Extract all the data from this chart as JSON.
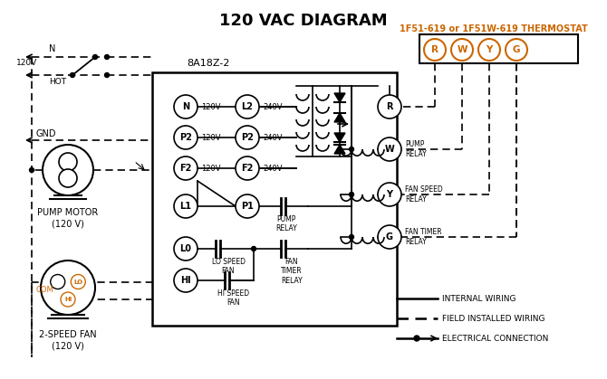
{
  "title": "120 VAC DIAGRAM",
  "bg_color": "#ffffff",
  "line_color": "#000000",
  "orange_color": "#cc6600",
  "thermostat_label": "1F51-619 or 1F51W-619 THERMOSTAT",
  "thermostat_terminals": [
    "R",
    "W",
    "Y",
    "G"
  ],
  "board_label": "8A18Z-2",
  "left_labels": [
    "N",
    "P2",
    "F2"
  ],
  "left_voltages": [
    "120V",
    "120V",
    "120V"
  ],
  "right_labels": [
    "L2",
    "P2",
    "F2"
  ],
  "right_voltages": [
    "240V",
    "240V",
    "240V"
  ],
  "right_relay_R": "R",
  "right_relay_W": "W",
  "right_relay_Y": "Y",
  "right_relay_G": "G",
  "pump_relay_label": "PUMP\nRELAY",
  "fan_speed_label": "FAN SPEED\nRELAY",
  "fan_timer_label": "FAN TIMER\nRELAY",
  "pump_motor_label": "PUMP MOTOR\n(120 V)",
  "two_speed_fan_label": "2-SPEED FAN\n(120 V)",
  "gnd_label": "GND",
  "n_label": "N",
  "hot_label": "HOT",
  "120v_label": "120V",
  "com_label": "COM",
  "lo_label": "LO",
  "hi_label": "HI",
  "lo_speed_text": "LO SPEED\nFAN",
  "hi_speed_text": "HI SPEED\nFAN",
  "pump_relay_text": "PUMP\nRELAY",
  "fan_timer_text": "FAN\nTIMER\nRELAY",
  "legend_internal": "INTERNAL WIRING",
  "legend_field": "FIELD INSTALLED WIRING",
  "legend_electrical": "ELECTRICAL CONNECTION"
}
